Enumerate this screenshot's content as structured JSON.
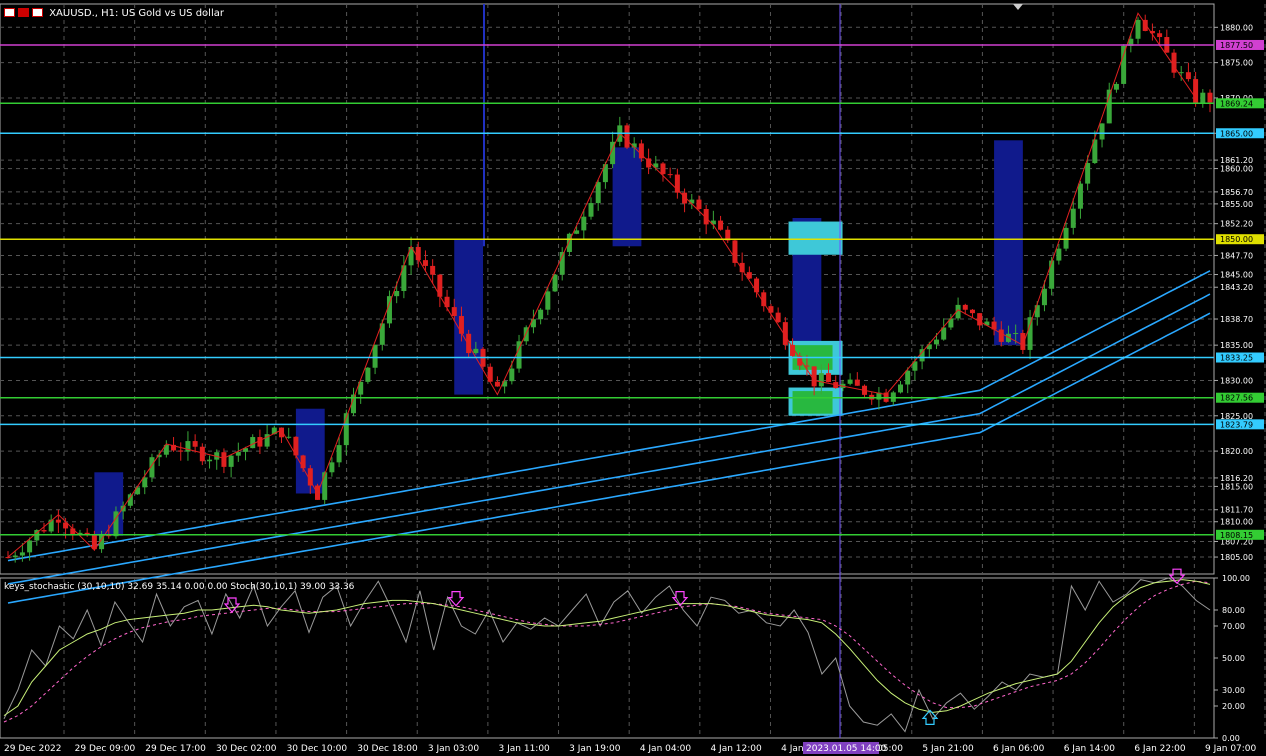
{
  "window": {
    "symbol_title": "XAUUSD., H1:  US Gold vs US dollar",
    "stoch_label": "keys_stochastic (30,10,10) 32.69 35.14 0.00 0.00 Stoch(30,10,1) 39.00 33.36"
  },
  "chart_data": {
    "type": "candlestick",
    "price_axis": {
      "range": [
        1802.6,
        1883.3
      ],
      "ticks": [
        1880.0,
        1875.0,
        1870.0,
        1865.0,
        1861.2,
        1860.0,
        1856.7,
        1855.0,
        1852.2,
        1847.7,
        1845.0,
        1843.2,
        1838.7,
        1835.0,
        1830.0,
        1825.0,
        1820.0,
        1816.2,
        1815.0,
        1811.7,
        1810.0,
        1807.2,
        1805.0
      ]
    },
    "time_axis": {
      "labels": [
        "29 Dec 2022",
        "29 Dec 09:00",
        "29 Dec 17:00",
        "30 Dec 02:00",
        "30 Dec 10:00",
        "30 Dec 18:00",
        "3 Jan 03:00",
        "3 Jan 11:00",
        "3 Jan 19:00",
        "4 Jan 04:00",
        "4 Jan 12:00",
        "4 Jan 20:00",
        "5 Jan 05:00",
        "5 Jan 21:00",
        "6 Jan 06:00",
        "6 Jan 14:00",
        "6 Jan 22:00",
        "9 Jan 07:00"
      ],
      "crosshair_label": "2023.01.05 14:00"
    },
    "levels": [
      {
        "price": 1877.5,
        "label": "1877.50",
        "color": "#d040d0"
      },
      {
        "price": 1869.24,
        "label": "1869.24",
        "color": "#33cc33"
      },
      {
        "price": 1865.0,
        "label": "1865.00",
        "color": "#33ccff"
      },
      {
        "price": 1850.0,
        "label": "1850.00",
        "color": "#e0e000"
      },
      {
        "price": 1833.25,
        "label": "1833.25",
        "color": "#33ccff"
      },
      {
        "price": 1827.56,
        "label": "1827.56",
        "color": "#33cc33"
      },
      {
        "price": 1823.79,
        "label": "1823.79",
        "color": "#33ccff"
      },
      {
        "price": 1808.15,
        "label": "1808.15",
        "color": "#33cc33"
      }
    ],
    "zigzag": [
      [
        0,
        1805
      ],
      [
        7,
        1811
      ],
      [
        12,
        1806
      ],
      [
        22,
        1821
      ],
      [
        30,
        1819
      ],
      [
        38,
        1823
      ],
      [
        43,
        1814
      ],
      [
        56,
        1849
      ],
      [
        68,
        1828
      ],
      [
        85,
        1865
      ],
      [
        98,
        1852
      ],
      [
        112,
        1830
      ],
      [
        122,
        1828
      ],
      [
        132,
        1840
      ],
      [
        141,
        1835
      ],
      [
        157,
        1882
      ],
      [
        165,
        1870
      ]
    ],
    "stochastic": {
      "range": [
        0,
        100
      ],
      "ticks": [
        100,
        80,
        70,
        50,
        30,
        20,
        0
      ],
      "main": [
        14,
        20,
        35,
        45,
        55,
        60,
        65,
        68,
        72,
        74,
        75,
        76,
        77,
        78,
        80,
        80,
        81,
        82,
        83,
        82,
        80,
        79,
        78,
        79,
        80,
        82,
        84,
        85,
        86,
        86,
        85,
        84,
        82,
        80,
        78,
        76,
        74,
        72,
        71,
        70,
        70,
        71,
        72,
        73,
        75,
        77,
        79,
        81,
        83,
        84,
        84,
        84,
        83,
        81,
        79,
        77,
        76,
        75,
        74,
        72,
        65,
        56,
        46,
        36,
        28,
        22,
        18,
        16,
        17,
        20,
        24,
        28,
        31,
        34,
        36,
        38,
        40,
        48,
        60,
        72,
        82,
        89,
        94,
        97,
        98,
        99,
        98,
        96
      ],
      "signal": [
        10,
        14,
        20,
        28,
        36,
        44,
        51,
        57,
        62,
        66,
        69,
        71,
        73,
        74,
        76,
        77,
        78,
        79,
        80,
        81,
        81,
        80,
        79,
        79,
        79,
        80,
        81,
        82,
        83,
        84,
        84,
        84,
        83,
        82,
        80,
        78,
        76,
        74,
        72,
        71,
        70,
        70,
        70,
        71,
        72,
        74,
        76,
        78,
        80,
        82,
        83,
        84,
        83,
        82,
        80,
        78,
        77,
        76,
        75,
        74,
        70,
        64,
        56,
        48,
        40,
        33,
        27,
        22,
        19,
        19,
        20,
        23,
        26,
        29,
        32,
        34,
        36,
        40,
        47,
        56,
        66,
        75,
        83,
        89,
        93,
        96,
        98,
        97
      ],
      "fast": [
        12,
        30,
        55,
        45,
        70,
        62,
        80,
        58,
        85,
        72,
        60,
        90,
        70,
        82,
        86,
        65,
        90,
        75,
        95,
        70,
        82,
        92,
        66,
        88,
        95,
        70,
        85,
        98,
        80,
        60,
        92,
        55,
        88,
        70,
        65,
        80,
        60,
        72,
        68,
        75,
        70,
        80,
        90,
        70,
        85,
        92,
        78,
        88,
        95,
        80,
        70,
        88,
        86,
        78,
        80,
        72,
        70,
        80,
        66,
        40,
        50,
        20,
        10,
        8,
        15,
        4,
        30,
        12,
        22,
        28,
        18,
        26,
        35,
        30,
        40,
        38,
        40,
        95,
        80,
        98,
        85,
        90,
        99,
        97,
        100,
        95,
        86,
        80
      ]
    }
  }
}
